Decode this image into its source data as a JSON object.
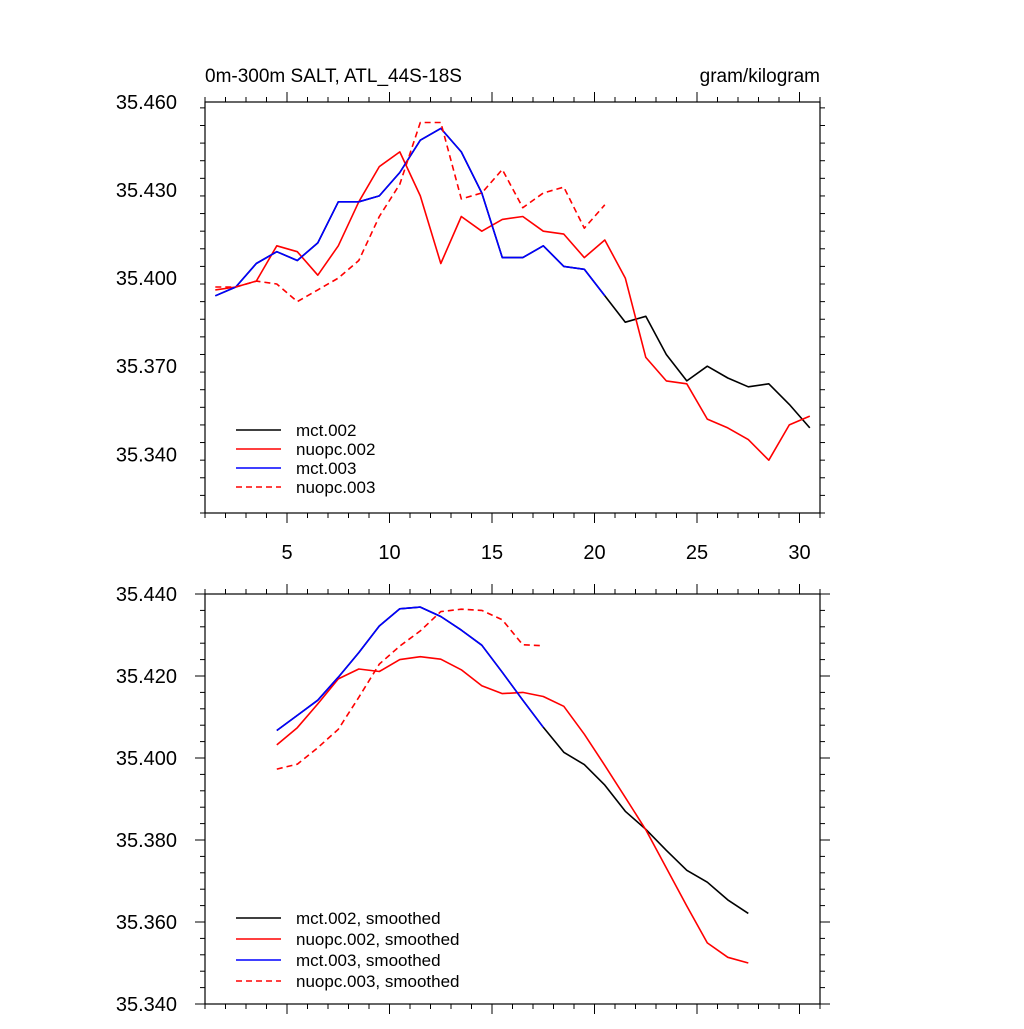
{
  "chart_data": [
    {
      "type": "line",
      "title": "0m-300m SALT, ATL_44S-18S",
      "subtitle": "gram/kilogram",
      "xlim": [
        1,
        31
      ],
      "ylim": [
        35.32,
        35.46
      ],
      "x_ticks": [
        5,
        10,
        15,
        20,
        25,
        30
      ],
      "y_ticks": [
        35.34,
        35.37,
        35.4,
        35.43,
        35.46
      ],
      "y_tick_labels": [
        "35.340",
        "35.370",
        "35.400",
        "35.430",
        "35.460"
      ],
      "legend_position": "bottom-left",
      "series": [
        {
          "name": "mct.002",
          "color": "#000000",
          "dash": "solid",
          "x": [
            1.5,
            2.5,
            3.5,
            4.5,
            5.5,
            6.5,
            7.5,
            8.5,
            9.5,
            10.5,
            11.5,
            12.5,
            13.5,
            14.5,
            15.5,
            16.5,
            17.5,
            18.5,
            19.5,
            20.5,
            21.5,
            22.5,
            23.5,
            24.5,
            25.5,
            26.5,
            27.5,
            28.5,
            29.5,
            30.5
          ],
          "values": [
            35.394,
            35.397,
            35.405,
            35.409,
            35.406,
            35.412,
            35.426,
            35.426,
            35.428,
            35.436,
            35.447,
            35.451,
            35.443,
            35.429,
            35.407,
            35.407,
            35.411,
            35.404,
            35.403,
            35.394,
            35.385,
            35.387,
            35.374,
            35.365,
            35.37,
            35.366,
            35.363,
            35.364,
            35.357,
            35.349
          ]
        },
        {
          "name": "nuopc.002",
          "color": "#ff0000",
          "dash": "solid",
          "x": [
            1.5,
            2.5,
            3.5,
            4.5,
            5.5,
            6.5,
            7.5,
            8.5,
            9.5,
            10.5,
            11.5,
            12.5,
            13.5,
            14.5,
            15.5,
            16.5,
            17.5,
            18.5,
            19.5,
            20.5,
            21.5,
            22.5,
            23.5,
            24.5,
            25.5,
            26.5,
            27.5,
            28.5,
            29.5,
            30.5
          ],
          "values": [
            35.396,
            35.397,
            35.399,
            35.411,
            35.409,
            35.401,
            35.411,
            35.426,
            35.438,
            35.443,
            35.428,
            35.405,
            35.421,
            35.416,
            35.42,
            35.421,
            35.416,
            35.415,
            35.407,
            35.413,
            35.4,
            35.373,
            35.365,
            35.364,
            35.352,
            35.349,
            35.345,
            35.338,
            35.35,
            35.353
          ]
        },
        {
          "name": "mct.003",
          "color": "#0000ff",
          "dash": "solid",
          "x": [
            1.5,
            2.5,
            3.5,
            4.5,
            5.5,
            6.5,
            7.5,
            8.5,
            9.5,
            10.5,
            11.5,
            12.5,
            13.5,
            14.5,
            15.5,
            16.5,
            17.5,
            18.5,
            19.5,
            20.5
          ],
          "values": [
            35.394,
            35.397,
            35.405,
            35.409,
            35.406,
            35.412,
            35.426,
            35.426,
            35.428,
            35.436,
            35.447,
            35.451,
            35.443,
            35.429,
            35.407,
            35.407,
            35.411,
            35.404,
            35.403,
            35.394
          ]
        },
        {
          "name": "nuopc.003",
          "color": "#ff0000",
          "dash": "dashed",
          "x": [
            1.5,
            2.5,
            3.5,
            4.5,
            5.5,
            6.5,
            7.5,
            8.5,
            9.5,
            10.5,
            11.5,
            12.5,
            13.5,
            14.5,
            15.5,
            16.5,
            17.5,
            18.5,
            19.5,
            20.5
          ],
          "values": [
            35.397,
            35.397,
            35.399,
            35.398,
            35.392,
            35.396,
            35.4,
            35.406,
            35.421,
            35.432,
            35.453,
            35.453,
            35.427,
            35.429,
            35.437,
            35.424,
            35.429,
            35.431,
            35.417,
            35.425
          ]
        }
      ]
    },
    {
      "type": "line",
      "title": "",
      "xlim": [
        1,
        31
      ],
      "ylim": [
        35.34,
        35.44
      ],
      "x_ticks": [
        5,
        10,
        15,
        20,
        25,
        30
      ],
      "y_ticks": [
        35.34,
        35.36,
        35.38,
        35.4,
        35.42,
        35.44
      ],
      "y_tick_labels": [
        "35.340",
        "35.360",
        "35.380",
        "35.400",
        "35.420",
        "35.440"
      ],
      "legend_position": "bottom-left",
      "series": [
        {
          "name": "mct.002, smoothed",
          "color": "#000000",
          "dash": "solid",
          "x": [
            4.5,
            5.5,
            6.5,
            7.5,
            8.5,
            9.5,
            10.5,
            11.5,
            12.5,
            13.5,
            14.5,
            15.5,
            16.5,
            17.5,
            18.5,
            19.5,
            20.5,
            21.5,
            22.5,
            23.5,
            24.5,
            25.5,
            26.5,
            27.5
          ],
          "values": [
            35.4067,
            35.4104,
            35.4141,
            35.4197,
            35.4257,
            35.4322,
            35.4364,
            35.4368,
            35.4345,
            35.4312,
            35.4275,
            35.4209,
            35.4141,
            35.4075,
            35.4014,
            35.3984,
            35.3934,
            35.387,
            35.3826,
            35.3775,
            35.3726,
            35.3697,
            35.3654,
            35.3621
          ]
        },
        {
          "name": "nuopc.002, smoothed",
          "color": "#ff0000",
          "dash": "solid",
          "x": [
            4.5,
            5.5,
            6.5,
            7.5,
            8.5,
            9.5,
            10.5,
            11.5,
            12.5,
            13.5,
            14.5,
            15.5,
            16.5,
            17.5,
            18.5,
            19.5,
            20.5,
            21.5,
            22.5,
            23.5,
            24.5,
            25.5,
            26.5,
            27.5
          ],
          "values": [
            35.4032,
            35.4074,
            35.4132,
            35.4193,
            35.4217,
            35.4211,
            35.424,
            35.4247,
            35.4241,
            35.4215,
            35.4176,
            35.4157,
            35.416,
            35.415,
            35.4126,
            35.4058,
            35.3982,
            35.3904,
            35.3825,
            35.3732,
            35.3639,
            35.3549,
            35.3514,
            35.35
          ]
        },
        {
          "name": "mct.003, smoothed",
          "color": "#0000ff",
          "dash": "solid",
          "x": [
            4.5,
            5.5,
            6.5,
            7.5,
            8.5,
            9.5,
            10.5,
            11.5,
            12.5,
            13.5,
            14.5,
            15.5,
            16.5,
            17.5
          ],
          "values": [
            35.4067,
            35.4104,
            35.4141,
            35.4197,
            35.4257,
            35.4322,
            35.4364,
            35.4368,
            35.4345,
            35.4312,
            35.4275,
            35.4209,
            35.4141,
            35.4075
          ]
        },
        {
          "name": "nuopc.003, smoothed",
          "color": "#ff0000",
          "dash": "dashed",
          "x": [
            4.5,
            5.5,
            6.5,
            7.5,
            8.5,
            9.5,
            10.5,
            11.5,
            12.5,
            13.5,
            14.5,
            15.5,
            16.5,
            17.5
          ],
          "values": [
            35.3973,
            35.3985,
            35.4025,
            35.407,
            35.4148,
            35.4229,
            35.4273,
            35.431,
            35.4357,
            35.4363,
            35.436,
            35.4337,
            35.4276,
            35.4274
          ]
        }
      ]
    }
  ]
}
